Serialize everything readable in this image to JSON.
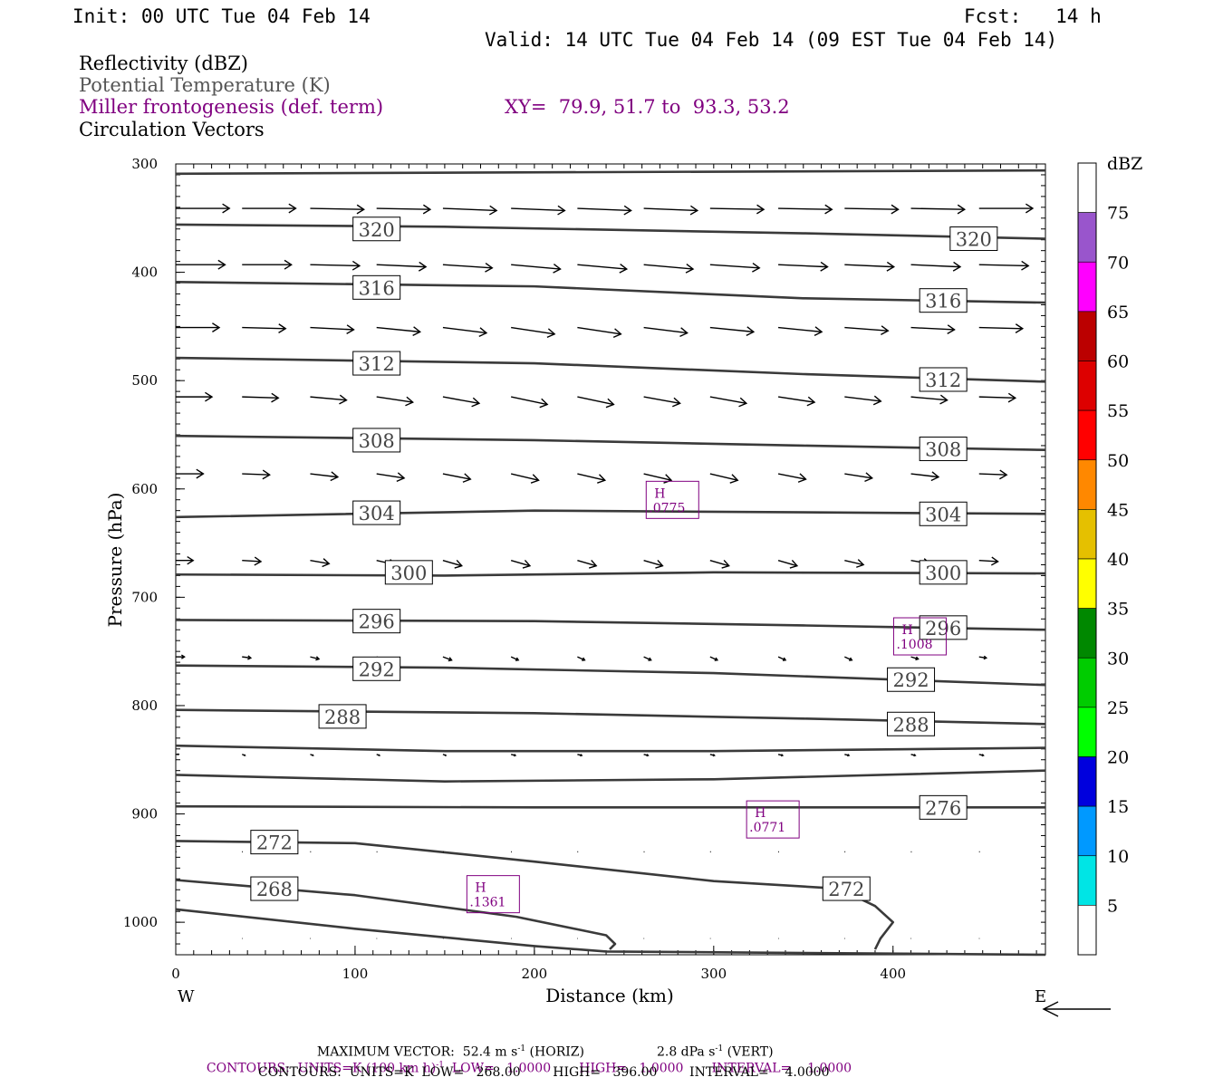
{
  "header": {
    "init": "Init: 00 UTC Tue 04 Feb 14",
    "fcst": "Fcst:   14 h",
    "valid": "Valid: 14 UTC Tue 04 Feb 14 (09 EST Tue 04 Feb 14)"
  },
  "fields": [
    {
      "text": "Reflectivity (dBZ)",
      "color": "#000000"
    },
    {
      "text": "Potential Temperature (K)",
      "color": "#555555"
    },
    {
      "text": "Miller frontogenesis (def. term)",
      "color": "#800080"
    },
    {
      "text": "Circulation Vectors",
      "color": "#000000"
    }
  ],
  "xy_text": "XY=  79.9, 51.7 to  93.3, 53.2",
  "footer": {
    "max_vector_prefix": "MAXIMUM VECTOR:  52.4 m s",
    "max_vector_mid": " (HORIZ)",
    "max_vector_vert": "2.8 dPa s",
    "max_vector_suffix": " (VERT)",
    "superscript": "-1",
    "contours1_prefix": "CONTOURS:  UNITS=K (100 km h)",
    "contours1_rest": "  LOW=   1.0000       HIGH=   1.0000       INTERVAL=    1.0000",
    "contours2": "CONTOURS:  UNITS=K  LOW=   268.00        HIGH=   396.00        INTERVAL=    4.0000"
  },
  "chart_data": {
    "type": "line",
    "xlabel": "Distance (km)",
    "ylabel": "Pressure (hPa)",
    "xlim": [
      0,
      485
    ],
    "ylim": [
      300,
      1030
    ],
    "x_ticks": [
      0,
      100,
      200,
      300,
      400
    ],
    "y_ticks": [
      300,
      400,
      500,
      600,
      700,
      800,
      900,
      1000
    ],
    "x_end_labels": {
      "left": "W",
      "right": "E"
    },
    "colorbar": {
      "unit": "dBZ",
      "labels": [
        "5",
        "10",
        "15",
        "20",
        "25",
        "30",
        "35",
        "40",
        "45",
        "50",
        "55",
        "60",
        "65",
        "70",
        "75"
      ],
      "colors": [
        "#ffffff",
        "#00e5e5",
        "#0099ff",
        "#0000dd",
        "#00ff00",
        "#00cc00",
        "#008800",
        "#ffff00",
        "#e5c000",
        "#ff8800",
        "#ff0000",
        "#dd0000",
        "#bb0000",
        "#ff00ff",
        "#9955cc",
        "#ffffff"
      ]
    },
    "isentropes": [
      {
        "theta": "",
        "points": [
          [
            0,
            309
          ],
          [
            485,
            306
          ]
        ]
      },
      {
        "theta": "320",
        "points": [
          [
            0,
            356
          ],
          [
            150,
            358
          ],
          [
            350,
            364
          ],
          [
            485,
            369
          ]
        ],
        "labels": [
          [
            112,
            360
          ],
          [
            445,
            369
          ]
        ]
      },
      {
        "theta": "316",
        "points": [
          [
            0,
            409
          ],
          [
            200,
            413
          ],
          [
            350,
            424
          ],
          [
            485,
            428
          ]
        ],
        "labels": [
          [
            112,
            414
          ],
          [
            428,
            426
          ]
        ]
      },
      {
        "theta": "312",
        "points": [
          [
            0,
            479
          ],
          [
            200,
            484
          ],
          [
            350,
            494
          ],
          [
            485,
            501
          ]
        ],
        "labels": [
          [
            112,
            484
          ],
          [
            428,
            499
          ]
        ]
      },
      {
        "theta": "308",
        "points": [
          [
            0,
            551
          ],
          [
            200,
            555
          ],
          [
            350,
            560
          ],
          [
            485,
            564
          ]
        ],
        "labels": [
          [
            112,
            555
          ],
          [
            428,
            563
          ]
        ]
      },
      {
        "theta": "304",
        "points": [
          [
            0,
            626
          ],
          [
            200,
            620
          ],
          [
            485,
            623
          ]
        ],
        "labels": [
          [
            112,
            622
          ],
          [
            428,
            623
          ]
        ]
      },
      {
        "theta": "300",
        "points": [
          [
            0,
            679
          ],
          [
            150,
            680
          ],
          [
            300,
            677
          ],
          [
            485,
            678
          ]
        ],
        "labels": [
          [
            130,
            677
          ],
          [
            428,
            677
          ]
        ]
      },
      {
        "theta": "296",
        "points": [
          [
            0,
            721
          ],
          [
            200,
            722
          ],
          [
            350,
            726
          ],
          [
            485,
            730
          ]
        ],
        "labels": [
          [
            112,
            722
          ],
          [
            428,
            728
          ]
        ]
      },
      {
        "theta": "292",
        "points": [
          [
            0,
            763
          ],
          [
            150,
            765
          ],
          [
            300,
            770
          ],
          [
            485,
            781
          ]
        ],
        "labels": [
          [
            112,
            766
          ],
          [
            410,
            776
          ]
        ]
      },
      {
        "theta": "288",
        "points": [
          [
            0,
            804
          ],
          [
            200,
            807
          ],
          [
            350,
            812
          ],
          [
            485,
            817
          ]
        ],
        "labels": [
          [
            93,
            810
          ],
          [
            410,
            817
          ]
        ]
      },
      {
        "theta": "",
        "points": [
          [
            0,
            837
          ],
          [
            150,
            842
          ],
          [
            300,
            842
          ],
          [
            485,
            839
          ]
        ]
      },
      {
        "theta": "",
        "points": [
          [
            0,
            864
          ],
          [
            150,
            870
          ],
          [
            300,
            868
          ],
          [
            485,
            860
          ]
        ]
      },
      {
        "theta": "276",
        "points": [
          [
            0,
            893
          ],
          [
            200,
            894
          ],
          [
            350,
            894
          ],
          [
            485,
            894
          ]
        ],
        "labels": [
          [
            428,
            894
          ]
        ]
      },
      {
        "theta": "272",
        "points": [
          [
            0,
            925
          ],
          [
            100,
            927
          ],
          [
            200,
            944
          ],
          [
            300,
            962
          ],
          [
            370,
            969
          ],
          [
            390,
            985
          ],
          [
            400,
            1000
          ],
          [
            393,
            1015
          ],
          [
            390,
            1025
          ]
        ],
        "labels": [
          [
            55,
            926
          ],
          [
            374,
            969
          ]
        ]
      },
      {
        "theta": "268",
        "points": [
          [
            0,
            961
          ],
          [
            100,
            975
          ],
          [
            190,
            995
          ],
          [
            240,
            1012
          ],
          [
            245,
            1020
          ],
          [
            242,
            1025
          ]
        ],
        "labels": [
          [
            55,
            969
          ]
        ]
      },
      {
        "theta": "",
        "points": [
          [
            0,
            988
          ],
          [
            100,
            1006
          ],
          [
            200,
            1022
          ],
          [
            240,
            1027
          ],
          [
            485,
            1030
          ]
        ]
      }
    ],
    "frontogenesis_maxima": [
      {
        "label": "H",
        "value": ".0775",
        "x": 277,
        "y": 608
      },
      {
        "label": "H",
        "value": ".1008",
        "x": 415,
        "y": 734
      },
      {
        "label": "H",
        "value": ".0771",
        "x": 333,
        "y": 903
      },
      {
        "label": "H",
        "value": ".1361",
        "x": 177,
        "y": 972
      }
    ],
    "vector_rows": [
      {
        "p": 341,
        "u": [
          37,
          37,
          37,
          37,
          37,
          37,
          37,
          37,
          37,
          37,
          37,
          37,
          37
        ],
        "dp": [
          0,
          0,
          1,
          1,
          2,
          2,
          2,
          2,
          1,
          1,
          1,
          1,
          0
        ]
      },
      {
        "p": 393,
        "u": [
          34,
          34,
          34,
          34,
          34,
          34,
          34,
          34,
          34,
          34,
          34,
          34,
          34
        ],
        "dp": [
          0,
          0,
          1,
          2,
          3,
          4,
          4,
          4,
          3,
          2,
          2,
          2,
          1
        ]
      },
      {
        "p": 451,
        "u": [
          30,
          30,
          30,
          30,
          30,
          30,
          30,
          30,
          30,
          30,
          30,
          30,
          30
        ],
        "dp": [
          0,
          1,
          2,
          4,
          5,
          6,
          6,
          5,
          4,
          4,
          3,
          2,
          1
        ]
      },
      {
        "p": 515,
        "u": [
          25,
          25,
          25,
          25,
          25,
          25,
          25,
          25,
          25,
          25,
          25,
          25,
          25
        ],
        "dp": [
          0,
          1,
          3,
          5,
          6,
          7,
          7,
          6,
          6,
          5,
          4,
          3,
          1
        ]
      },
      {
        "p": 586,
        "u": [
          19,
          19,
          19,
          19,
          19,
          19,
          19,
          19,
          19,
          19,
          19,
          19,
          19
        ],
        "dp": [
          0,
          1,
          3,
          4,
          5,
          6,
          6,
          6,
          6,
          5,
          4,
          3,
          1
        ]
      },
      {
        "p": 666,
        "u": [
          12,
          13,
          13,
          13,
          13,
          13,
          13,
          13,
          13,
          13,
          13,
          13,
          13
        ],
        "dp": [
          0,
          1,
          3,
          4,
          5,
          5,
          5,
          5,
          5,
          5,
          4,
          3,
          1
        ]
      },
      {
        "p": 755,
        "u": [
          6,
          6,
          6,
          6,
          6,
          5,
          5,
          5,
          5,
          5,
          5,
          5,
          5
        ],
        "dp": [
          0,
          1,
          2,
          3,
          3,
          3,
          3,
          3,
          3,
          3,
          3,
          2,
          1
        ]
      },
      {
        "p": 845,
        "u": [
          2,
          2,
          2,
          2,
          2,
          3,
          3,
          3,
          3,
          3,
          3,
          3,
          3
        ],
        "dp": [
          0,
          1,
          1,
          1,
          1,
          1,
          1,
          1,
          1,
          1,
          1,
          1,
          1
        ]
      },
      {
        "p": 935,
        "u": [
          0.5,
          0.5,
          0.5,
          0.5,
          0.5,
          0.5,
          0.5,
          0.5,
          0.5,
          0.5,
          0.5,
          0.5,
          0.5
        ],
        "dp": [
          0,
          0,
          0,
          0,
          0,
          0,
          0,
          0,
          0,
          0,
          0,
          0,
          0
        ]
      },
      {
        "p": 1015,
        "u": [
          0.3,
          0.3,
          0.3,
          0.3,
          0.3,
          0.3,
          0.3,
          0.3,
          0.3,
          0.3,
          0.3,
          0.3,
          0.3
        ],
        "dp": [
          0,
          0,
          0,
          0,
          0,
          0,
          0,
          0,
          0,
          0,
          0,
          0,
          0
        ]
      }
    ],
    "vector_x": [
      0,
      37,
      75,
      112,
      149,
      187,
      224,
      261,
      298,
      336,
      373,
      410,
      448
    ]
  }
}
